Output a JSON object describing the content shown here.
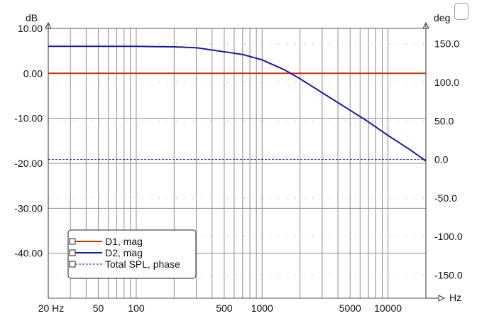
{
  "chart_data": {
    "type": "line",
    "xscale": "log",
    "xlim": [
      20,
      20000
    ],
    "xticks": [
      {
        "value": 20,
        "label": "20 Hz"
      },
      {
        "value": 50,
        "label": "50"
      },
      {
        "value": 100,
        "label": "100"
      },
      {
        "value": 500,
        "label": "500"
      },
      {
        "value": 1000,
        "label": "1000"
      },
      {
        "value": 5000,
        "label": "5000"
      },
      {
        "value": 10000,
        "label": "10000"
      }
    ],
    "xunit": "Hz",
    "ylim_left": [
      -50,
      10
    ],
    "yticks_left": [
      10,
      0,
      -10,
      -20,
      -30,
      -40
    ],
    "ytick_labels_left": [
      "10.00",
      "0.00",
      "-10.00",
      "-20.00",
      "-30.00",
      "-40.00"
    ],
    "yunit_left": "dB",
    "ylim_right": [
      -180,
      170
    ],
    "yticks_right": [
      150,
      100,
      50,
      0,
      -50,
      -100,
      -150
    ],
    "ytick_labels_right": [
      "150.0",
      "100.0",
      "50.0",
      "0.0",
      "-50.0",
      "-100.0",
      "-150.0"
    ],
    "yunit_right": "deg",
    "grid": true,
    "legend_position": "bottom-left",
    "series": [
      {
        "name": "D1, mag",
        "axis": "left",
        "color": "#cc3300",
        "style": "solid",
        "x": [
          20,
          100,
          1000,
          20000
        ],
        "y": [
          0,
          0,
          0,
          0
        ]
      },
      {
        "name": "D2, mag",
        "axis": "left",
        "color": "#1a1aa8",
        "style": "solid",
        "x": [
          20,
          100,
          200,
          300,
          500,
          700,
          1000,
          1500,
          2000,
          3000,
          5000,
          7000,
          10000,
          15000,
          20000
        ],
        "y": [
          6,
          6,
          5.9,
          5.7,
          4.8,
          4.2,
          3.0,
          0.8,
          -1.2,
          -4.3,
          -8.2,
          -10.8,
          -13.8,
          -17.0,
          -19.5
        ]
      },
      {
        "name": "Total SPL, phase",
        "axis": "right",
        "color": "#1a1aa8",
        "style": "dashed",
        "x": [
          20,
          20000
        ],
        "y": [
          0,
          0
        ]
      }
    ]
  }
}
